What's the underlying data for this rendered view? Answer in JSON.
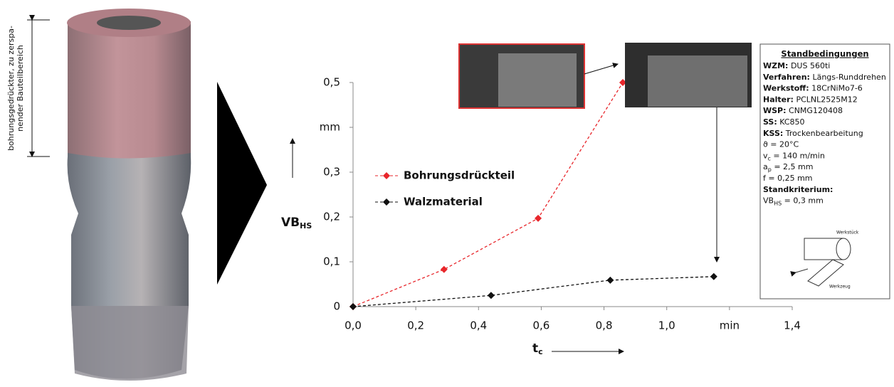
{
  "side_label": [
    "bohrungsgedrückter, zu zerspa-",
    "nender Bauteilbereich"
  ],
  "chart_data": {
    "type": "line",
    "x_label": {
      "main": "t",
      "sub": "c"
    },
    "y_label": {
      "main": "VB",
      "sub": "HS"
    },
    "xlim": [
      0,
      1.4
    ],
    "xticks": [
      {
        "value": 0,
        "label": "0,0"
      },
      {
        "value": 0.2,
        "label": "0,2"
      },
      {
        "value": 0.4,
        "label": "0,4"
      },
      {
        "value": 0.6,
        "label": "0,6"
      },
      {
        "value": 0.8,
        "label": "0,8"
      },
      {
        "value": 1.0,
        "label": "1,0"
      },
      {
        "value": 1.2,
        "label": "min"
      },
      {
        "value": 1.4,
        "label": "1,4"
      }
    ],
    "ylim": [
      0,
      0.5
    ],
    "yticks": [
      0,
      {
        "value": 0.1,
        "label": "0,1"
      },
      {
        "value": 0.2,
        "label": "0,2"
      },
      {
        "value": 0.3,
        "label": "0,3"
      },
      {
        "value": 0.4,
        "label": "mm"
      },
      {
        "value": 0.5,
        "label": "0,5"
      }
    ],
    "series": [
      {
        "name": "Bohrungsdrückteil",
        "color": "#e8262b",
        "x": [
          0,
          0.29,
          0.59,
          0.86
        ],
        "values": [
          0,
          0.083,
          0.197,
          0.5
        ]
      },
      {
        "name": "Walzmaterial",
        "color": "#111111",
        "x": [
          0,
          0.44,
          0.82,
          1.15
        ],
        "values": [
          0,
          0.025,
          0.059,
          0.067
        ]
      }
    ]
  },
  "info": {
    "title": "Standbedingungen",
    "lines": [
      {
        "bold": "WZM:",
        "text": " DUS 560ti"
      },
      {
        "bold": "Verfahren:",
        "text": " Längs-Runddrehen"
      },
      {
        "bold": "Werkstoff:",
        "text": " 18CrNiMo7-6"
      },
      {
        "bold": "Halter:",
        "text": " PCLNL2525M12"
      },
      {
        "bold": "WSP:",
        "text": " CNMG120408"
      },
      {
        "bold": "SS:",
        "text": " KC850"
      },
      {
        "bold": "KSS:",
        "text": " Trockenbearbeitung"
      },
      {
        "text": "ϑ = 20°C"
      },
      {
        "text": "v",
        "sub": "c",
        "rest": " = 140 m/min"
      },
      {
        "text": "a",
        "sub": "p",
        "rest": " = 2,5 mm"
      },
      {
        "text": "f = 0,25 mm"
      },
      {
        "bold": "Standkriterium:"
      },
      {
        "text": "VB",
        "sub": "HS",
        "rest": " = 0,3 mm"
      }
    ],
    "sketch_labels": [
      "Werkstück",
      "Werkzeug"
    ]
  }
}
